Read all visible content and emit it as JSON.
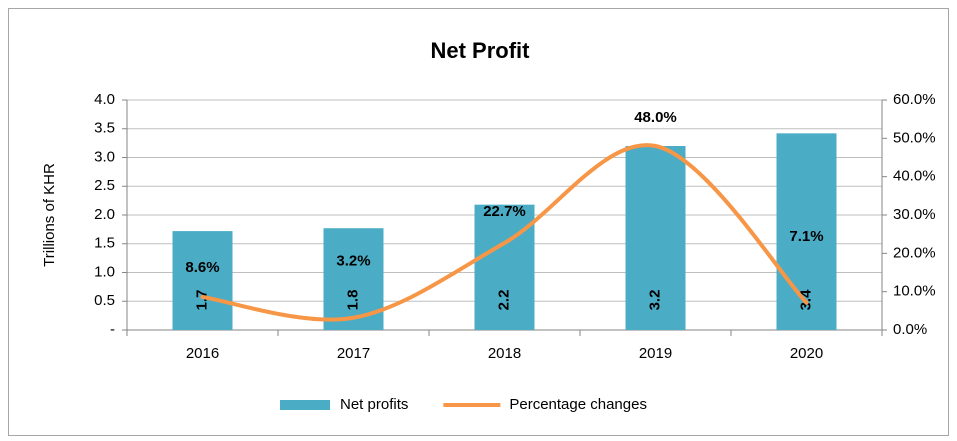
{
  "chart_data": {
    "type": "bar_line",
    "title": "Net Profit",
    "y_label": "Trillions of KHR",
    "categories": [
      "2016",
      "2017",
      "2018",
      "2019",
      "2020"
    ],
    "series": [
      {
        "name": "Net profits",
        "type": "bar",
        "color": "#4bacc6",
        "values": [
          1.72,
          1.77,
          2.18,
          3.2,
          3.42
        ],
        "value_labels": [
          "1.7",
          "1.8",
          "2.2",
          "3.2",
          "3.4"
        ]
      },
      {
        "name": "Percentage changes",
        "type": "line",
        "axis": "y2",
        "color": "#f79646",
        "values": [
          8.6,
          3.2,
          22.7,
          48.0,
          7.1
        ],
        "value_labels": [
          "8.6%",
          "3.2%",
          "22.7%",
          "48.0%",
          "7.1%"
        ]
      }
    ],
    "ylim": [
      0,
      4
    ],
    "yticks": [
      {
        "value": 0,
        "label": "-"
      },
      {
        "value": 0.5,
        "label": "0.5"
      },
      {
        "value": 1,
        "label": "1.0"
      },
      {
        "value": 1.5,
        "label": "1.5"
      },
      {
        "value": 2,
        "label": "2.0"
      },
      {
        "value": 2.5,
        "label": "2.5"
      },
      {
        "value": 3,
        "label": "3.0"
      },
      {
        "value": 3.5,
        "label": "3.5"
      },
      {
        "value": 4,
        "label": "4.0"
      }
    ],
    "y2lim": [
      0,
      60
    ],
    "y2ticks": [
      {
        "value": 0,
        "label": "0.0%"
      },
      {
        "value": 10,
        "label": "10.0%"
      },
      {
        "value": 20,
        "label": "20.0%"
      },
      {
        "value": 30,
        "label": "30.0%"
      },
      {
        "value": 40,
        "label": "40.0%"
      },
      {
        "value": 50,
        "label": "50.0%"
      },
      {
        "value": 60,
        "label": "60.0%"
      }
    ],
    "grid": true,
    "legend": "bottom"
  }
}
